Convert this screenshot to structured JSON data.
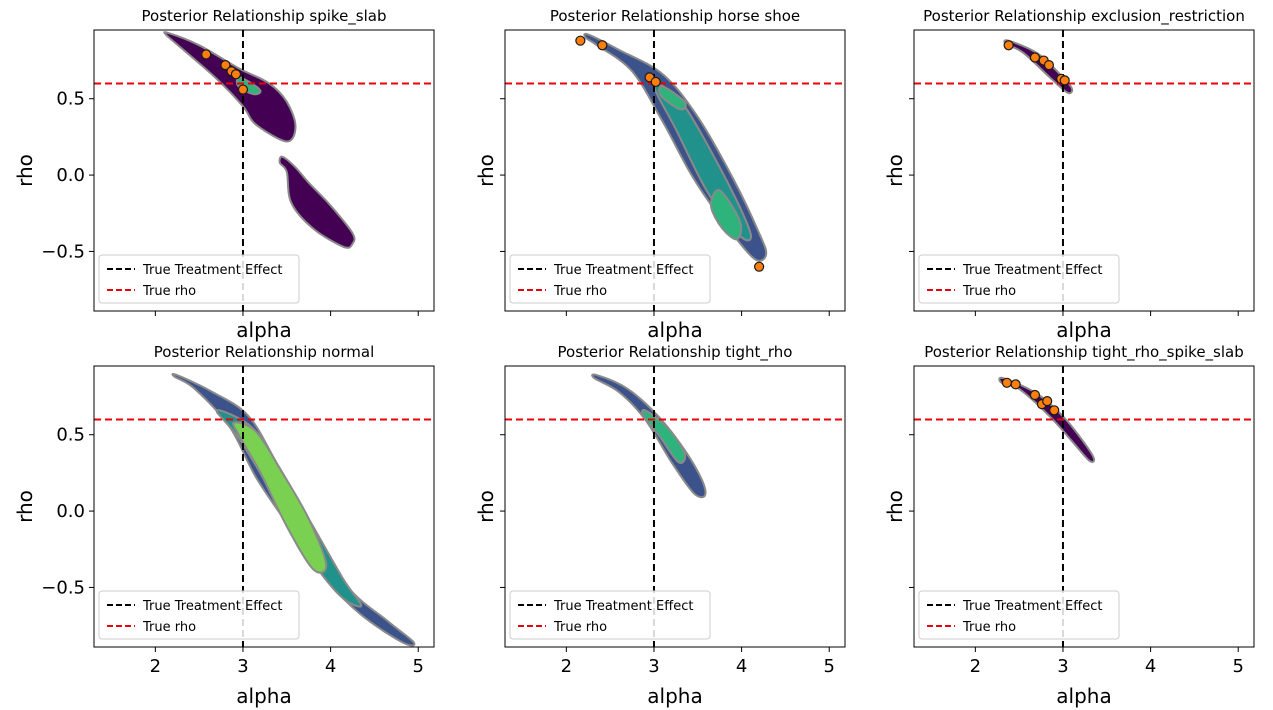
{
  "chart_data": {
    "type": "contour",
    "shared_x": {
      "label": "alpha",
      "xlim": [
        1.3,
        5.18
      ],
      "ticks": [
        2,
        3,
        4,
        5
      ]
    },
    "shared_y": {
      "label": "rho",
      "ylim": [
        -0.89,
        0.95
      ],
      "ticks": [
        0.5,
        0.0,
        -0.5
      ],
      "tick_labels": [
        "0.5",
        "0.0",
        "−0.5"
      ]
    },
    "reference_lines": {
      "true_treatment_effect": 3.0,
      "true_rho": 0.6
    },
    "legend": {
      "position": "lower-left",
      "entries": [
        {
          "label": "True Treatment Effect",
          "color": "#000000",
          "style": "dashed"
        },
        {
          "label": "True rho",
          "color": "#e8000b",
          "style": "dashed"
        }
      ]
    },
    "level_colors": [
      "#440154",
      "#3b528b",
      "#21918c",
      "#2eb37c",
      "#7ad151"
    ],
    "panels": [
      {
        "title": "Posterior Relationship spike_slab",
        "regions": [
          {
            "level": 0,
            "outline": [
              [
                2.15,
                0.93
              ],
              [
                2.5,
                0.85
              ],
              [
                2.95,
                0.7
              ],
              [
                3.3,
                0.6
              ],
              [
                3.5,
                0.48
              ],
              [
                3.6,
                0.32
              ],
              [
                3.5,
                0.22
              ],
              [
                3.15,
                0.33
              ],
              [
                3.0,
                0.45
              ],
              [
                2.7,
                0.63
              ],
              [
                2.3,
                0.83
              ],
              [
                2.12,
                0.92
              ]
            ]
          },
          {
            "level": 0,
            "outline": [
              [
                3.45,
                0.12
              ],
              [
                3.6,
                0.05
              ],
              [
                3.75,
                -0.05
              ],
              [
                4.0,
                -0.2
              ],
              [
                4.25,
                -0.38
              ],
              [
                4.25,
                -0.45
              ],
              [
                4.15,
                -0.47
              ],
              [
                3.8,
                -0.35
              ],
              [
                3.55,
                -0.18
              ],
              [
                3.5,
                0.02
              ],
              [
                3.42,
                0.08
              ]
            ]
          },
          {
            "level": 3,
            "outline": [
              [
                2.95,
                0.64
              ],
              [
                3.1,
                0.6
              ],
              [
                3.2,
                0.55
              ],
              [
                3.12,
                0.53
              ],
              [
                2.95,
                0.58
              ]
            ]
          }
        ],
        "points": [
          [
            2.58,
            0.79
          ],
          [
            2.8,
            0.72
          ],
          [
            2.87,
            0.68
          ],
          [
            2.92,
            0.66
          ],
          [
            3.0,
            0.56
          ]
        ]
      },
      {
        "title": "Posterior Relationship horse shoe",
        "regions": [
          {
            "level": 1,
            "outline": [
              [
                2.25,
                0.92
              ],
              [
                2.6,
                0.82
              ],
              [
                3.1,
                0.66
              ],
              [
                3.5,
                0.38
              ],
              [
                3.9,
                -0.02
              ],
              [
                4.2,
                -0.38
              ],
              [
                4.28,
                -0.52
              ],
              [
                4.15,
                -0.55
              ],
              [
                3.85,
                -0.35
              ],
              [
                3.45,
                -0.02
              ],
              [
                3.1,
                0.35
              ],
              [
                2.75,
                0.68
              ],
              [
                2.35,
                0.85
              ],
              [
                2.22,
                0.9
              ]
            ]
          },
          {
            "level": 2,
            "outline": [
              [
                3.05,
                0.6
              ],
              [
                3.35,
                0.45
              ],
              [
                3.75,
                0.05
              ],
              [
                4.05,
                -0.3
              ],
              [
                4.1,
                -0.42
              ],
              [
                3.95,
                -0.38
              ],
              [
                3.6,
                -0.1
              ],
              [
                3.25,
                0.3
              ],
              [
                3.02,
                0.55
              ]
            ]
          },
          {
            "level": 3,
            "outline": [
              [
                3.1,
                0.58
              ],
              [
                3.35,
                0.48
              ],
              [
                3.3,
                0.43
              ],
              [
                3.08,
                0.52
              ]
            ]
          },
          {
            "level": 3,
            "outline": [
              [
                3.75,
                -0.1
              ],
              [
                3.98,
                -0.3
              ],
              [
                3.95,
                -0.42
              ],
              [
                3.78,
                -0.35
              ],
              [
                3.65,
                -0.2
              ]
            ]
          }
        ],
        "points": [
          [
            2.16,
            0.88
          ],
          [
            2.41,
            0.85
          ],
          [
            2.95,
            0.64
          ],
          [
            3.02,
            0.61
          ],
          [
            4.2,
            -0.6
          ]
        ]
      },
      {
        "title": "Posterior Relationship exclusion_restriction",
        "regions": [
          {
            "level": 0,
            "outline": [
              [
                2.38,
                0.88
              ],
              [
                2.7,
                0.8
              ],
              [
                2.95,
                0.67
              ],
              [
                3.1,
                0.57
              ],
              [
                3.05,
                0.54
              ],
              [
                2.85,
                0.64
              ],
              [
                2.55,
                0.8
              ],
              [
                2.35,
                0.86
              ]
            ]
          }
        ],
        "points": [
          [
            2.38,
            0.85
          ],
          [
            2.68,
            0.77
          ],
          [
            2.78,
            0.75
          ],
          [
            2.84,
            0.72
          ],
          [
            2.98,
            0.63
          ],
          [
            3.02,
            0.62
          ]
        ]
      },
      {
        "title": "Posterior Relationship normal",
        "regions": [
          {
            "level": 1,
            "outline": [
              [
                2.25,
                0.89
              ],
              [
                2.65,
                0.78
              ],
              [
                3.05,
                0.63
              ],
              [
                3.35,
                0.35
              ],
              [
                3.75,
                -0.1
              ],
              [
                4.2,
                -0.5
              ],
              [
                4.65,
                -0.72
              ],
              [
                4.95,
                -0.86
              ],
              [
                4.82,
                -0.86
              ],
              [
                4.35,
                -0.68
              ],
              [
                3.95,
                -0.45
              ],
              [
                3.55,
                -0.12
              ],
              [
                3.15,
                0.22
              ],
              [
                2.85,
                0.55
              ],
              [
                2.45,
                0.8
              ],
              [
                2.22,
                0.88
              ]
            ]
          },
          {
            "level": 2,
            "outline": [
              [
                2.7,
                0.66
              ],
              [
                3.1,
                0.55
              ],
              [
                3.4,
                0.3
              ],
              [
                3.8,
                -0.1
              ],
              [
                4.15,
                -0.45
              ],
              [
                4.35,
                -0.62
              ],
              [
                4.1,
                -0.55
              ],
              [
                3.7,
                -0.25
              ],
              [
                3.3,
                0.15
              ],
              [
                2.95,
                0.48
              ]
            ]
          },
          {
            "level": 4,
            "outline": [
              [
                2.9,
                0.58
              ],
              [
                3.15,
                0.52
              ],
              [
                3.45,
                0.25
              ],
              [
                3.75,
                -0.05
              ],
              [
                3.95,
                -0.35
              ],
              [
                3.8,
                -0.38
              ],
              [
                3.5,
                -0.1
              ],
              [
                3.2,
                0.25
              ],
              [
                2.95,
                0.5
              ]
            ]
          }
        ],
        "points": []
      },
      {
        "title": "Posterior Relationship tight_rho",
        "regions": [
          {
            "level": 1,
            "outline": [
              [
                2.35,
                0.89
              ],
              [
                2.7,
                0.8
              ],
              [
                3.05,
                0.62
              ],
              [
                3.35,
                0.4
              ],
              [
                3.55,
                0.2
              ],
              [
                3.58,
                0.1
              ],
              [
                3.45,
                0.12
              ],
              [
                3.2,
                0.32
              ],
              [
                2.9,
                0.6
              ],
              [
                2.6,
                0.78
              ],
              [
                2.32,
                0.87
              ]
            ]
          },
          {
            "level": 3,
            "outline": [
              [
                2.9,
                0.66
              ],
              [
                3.15,
                0.55
              ],
              [
                3.35,
                0.38
              ],
              [
                3.28,
                0.32
              ],
              [
                3.05,
                0.5
              ],
              [
                2.88,
                0.62
              ]
            ]
          }
        ],
        "points": []
      },
      {
        "title": "Posterior Relationship tight_rho_spike_slab",
        "regions": [
          {
            "level": 0,
            "outline": [
              [
                2.32,
                0.87
              ],
              [
                2.7,
                0.77
              ],
              [
                3.0,
                0.62
              ],
              [
                3.2,
                0.48
              ],
              [
                3.35,
                0.35
              ],
              [
                3.3,
                0.33
              ],
              [
                3.1,
                0.46
              ],
              [
                2.85,
                0.62
              ],
              [
                2.5,
                0.8
              ],
              [
                2.3,
                0.84
              ]
            ]
          }
        ],
        "points": [
          [
            2.36,
            0.84
          ],
          [
            2.46,
            0.83
          ],
          [
            2.68,
            0.76
          ],
          [
            2.76,
            0.7
          ],
          [
            2.82,
            0.72
          ],
          [
            2.9,
            0.66
          ]
        ]
      }
    ]
  }
}
